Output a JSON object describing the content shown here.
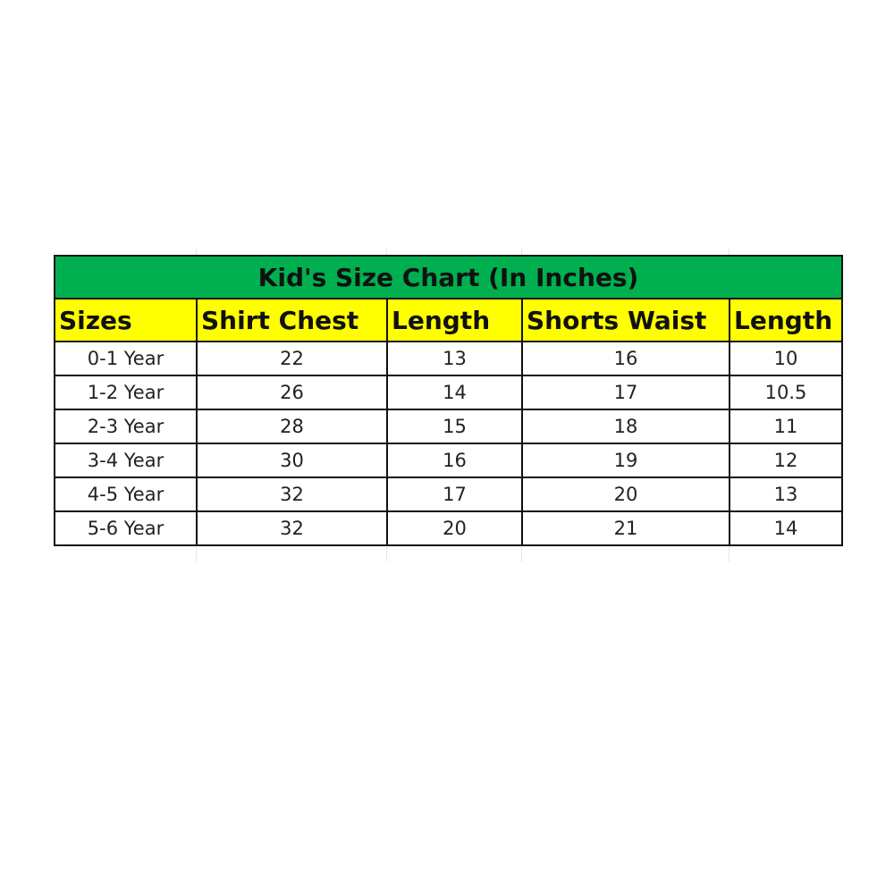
{
  "chart_data": {
    "type": "table",
    "title": "Kid's Size Chart (In Inches)",
    "columns": [
      "Sizes",
      "Shirt Chest",
      "Length",
      "Shorts Waist",
      "Length"
    ],
    "rows": [
      [
        "0-1 Year",
        "22",
        "13",
        "16",
        "10"
      ],
      [
        "1-2 Year",
        "26",
        "14",
        "17",
        "10.5"
      ],
      [
        "2-3 Year",
        "28",
        "15",
        "18",
        "11"
      ],
      [
        "3-4 Year",
        "30",
        "16",
        "19",
        "12"
      ],
      [
        "4-5 Year",
        "32",
        "17",
        "20",
        "13"
      ],
      [
        "5-6 Year",
        "32",
        "20",
        "21",
        "14"
      ]
    ]
  },
  "colors": {
    "title_bg": "#00b050",
    "header_bg": "#ffff00"
  }
}
